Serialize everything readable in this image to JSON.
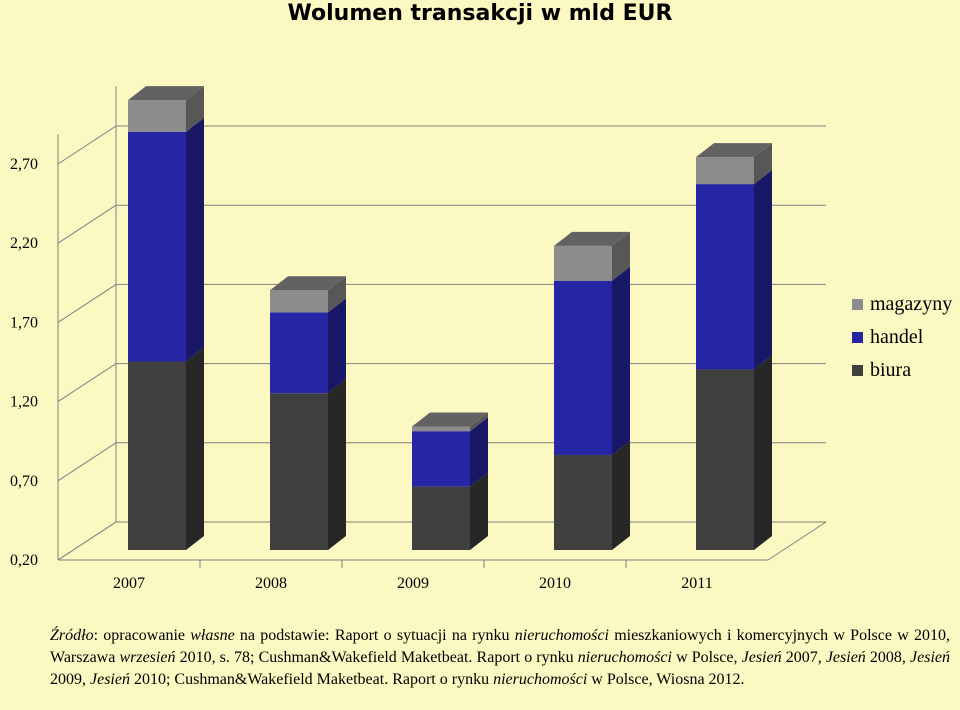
{
  "chart_data": {
    "type": "bar",
    "title": "Wolumen transakcji w mld EUR",
    "categories": [
      "2007",
      "2008",
      "2009",
      "2010",
      "2011"
    ],
    "series": [
      {
        "name": "biura",
        "values": [
          1.19,
          0.99,
          0.4,
          0.6,
          1.14
        ]
      },
      {
        "name": "handel",
        "values": [
          1.45,
          0.51,
          0.35,
          1.1,
          1.17
        ]
      },
      {
        "name": "magazyny",
        "values": [
          0.2,
          0.14,
          0.03,
          0.22,
          0.17
        ]
      }
    ],
    "y_ticks": [
      "0,20",
      "0,70",
      "1,20",
      "1,70",
      "2,20",
      "2,70"
    ],
    "ylim": [
      0.2,
      2.95
    ],
    "stacked": true,
    "style": "3d",
    "legend_position": "right",
    "xlabel": "",
    "ylabel": ""
  },
  "colors": {
    "background": "#fbf8c2",
    "biura": "#3f3f3f",
    "handel": "#2626a4",
    "magazyny": "#8c8c8c"
  },
  "source": {
    "p1": "Źródło",
    "p2": ": opracowanie ",
    "p3": "własne",
    "p4": " na podstawie: Raport o sytuacji na rynku ",
    "p5": "nieruchomości",
    "p6": " mieszkaniowych i komercyjnych w Polsce w 2010, Warszawa ",
    "p7": "wrzesień",
    "p8": " 2010, s. 78; Cushman&Wakefield Maketbeat. Raport o rynku ",
    "p9": "nieruchomości",
    "p10": " w Polsce, ",
    "p11": "Jesień",
    "p12": " 2007, ",
    "p13": "Jesień",
    "p14": " 2008, ",
    "p15": "Jesień",
    "p16": " 2009, ",
    "p17": "Jesień",
    "p18": " 2010; Cushman&Wakefield Maketbeat. Raport o rynku ",
    "p19": "nieruchomości",
    "p20": " w Polsce, Wiosna 2012."
  }
}
